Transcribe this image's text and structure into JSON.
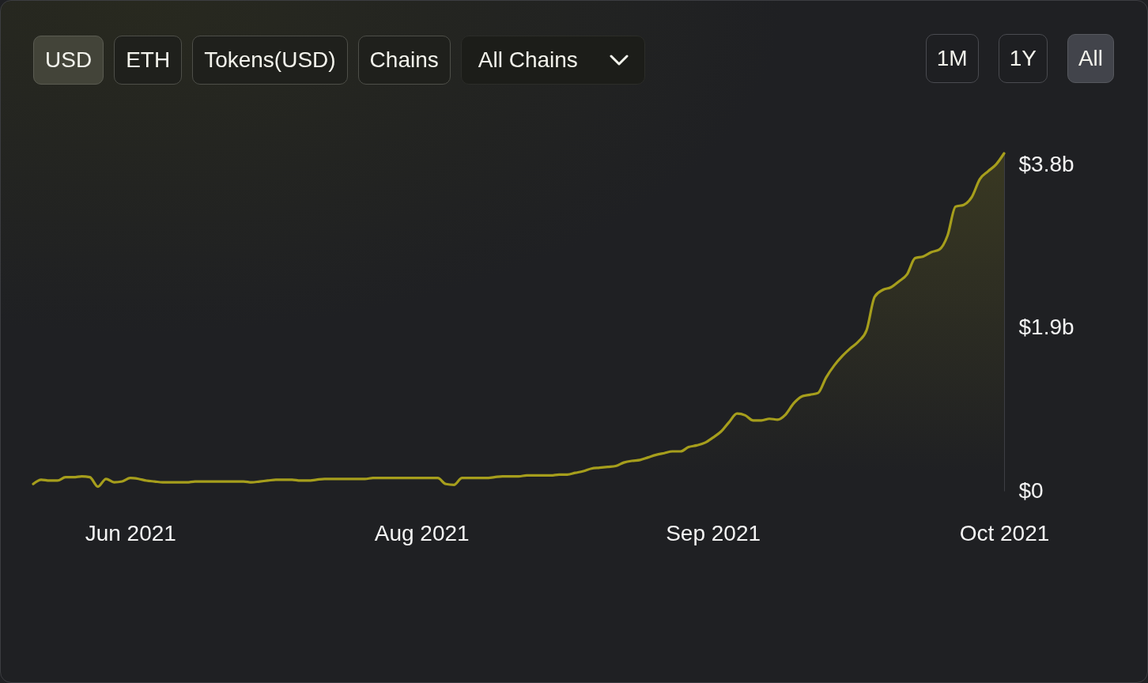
{
  "chart_data": {
    "type": "area",
    "categories": [
      null,
      null,
      null,
      null,
      null,
      null,
      null,
      null,
      null,
      null,
      null,
      null,
      "Jun 2021",
      null,
      null,
      null,
      null,
      null,
      null,
      null,
      null,
      null,
      null,
      null,
      null,
      null,
      null,
      null,
      null,
      null,
      null,
      null,
      null,
      null,
      null,
      null,
      null,
      null,
      null,
      null,
      null,
      null,
      null,
      null,
      null,
      null,
      null,
      null,
      "Aug 2021",
      null,
      null,
      null,
      null,
      null,
      null,
      null,
      null,
      null,
      null,
      null,
      null,
      null,
      null,
      null,
      null,
      null,
      null,
      null,
      null,
      null,
      null,
      null,
      null,
      null,
      null,
      null,
      null,
      null,
      null,
      null,
      null,
      null,
      null,
      null,
      "Sep 2021",
      null,
      null,
      null,
      null,
      null,
      null,
      null,
      null,
      null,
      null,
      null,
      null,
      null,
      null,
      null,
      null,
      null,
      null,
      null,
      null,
      null,
      null,
      null,
      null,
      null,
      null,
      null,
      null,
      null,
      null,
      null,
      null,
      null,
      null,
      null,
      "Oct 2021"
    ],
    "series": [
      {
        "color": "#a69e1c",
        "values": [
          0.08,
          0.13,
          0.12,
          0.12,
          0.16,
          0.16,
          0.17,
          0.16,
          0.05,
          0.14,
          0.1,
          0.11,
          0.15,
          0.14,
          0.12,
          0.11,
          0.1,
          0.1,
          0.1,
          0.1,
          0.11,
          0.11,
          0.11,
          0.11,
          0.11,
          0.11,
          0.11,
          0.1,
          0.11,
          0.12,
          0.13,
          0.13,
          0.13,
          0.12,
          0.12,
          0.13,
          0.14,
          0.14,
          0.14,
          0.14,
          0.14,
          0.14,
          0.15,
          0.15,
          0.15,
          0.15,
          0.15,
          0.15,
          0.15,
          0.15,
          0.15,
          0.08,
          0.07,
          0.15,
          0.15,
          0.15,
          0.15,
          0.16,
          0.17,
          0.17,
          0.17,
          0.18,
          0.18,
          0.18,
          0.18,
          0.19,
          0.19,
          0.21,
          0.23,
          0.26,
          0.27,
          0.28,
          0.29,
          0.33,
          0.35,
          0.36,
          0.39,
          0.42,
          0.44,
          0.46,
          0.46,
          0.51,
          0.53,
          0.56,
          0.62,
          0.69,
          0.8,
          0.9,
          0.88,
          0.82,
          0.82,
          0.84,
          0.83,
          0.89,
          1.02,
          1.1,
          1.12,
          1.14,
          1.32,
          1.46,
          1.57,
          1.66,
          1.74,
          1.87,
          2.26,
          2.34,
          2.37,
          2.44,
          2.52,
          2.71,
          2.73,
          2.78,
          2.81,
          2.97,
          3.31,
          3.33,
          3.42,
          3.63,
          3.72,
          3.8,
          3.93
        ]
      }
    ],
    "ylim": [
      0,
      3.93
    ],
    "yticks": [
      {
        "value": 0,
        "label": "$0"
      },
      {
        "value": 1.9,
        "label": "$1.9b"
      },
      {
        "value": 3.8,
        "label": "$3.8b"
      }
    ],
    "annotations": [
      "USD",
      "ETH",
      "Tokens(USD)",
      "Chains",
      "All Chains",
      "1M",
      "1Y",
      "All"
    ]
  }
}
